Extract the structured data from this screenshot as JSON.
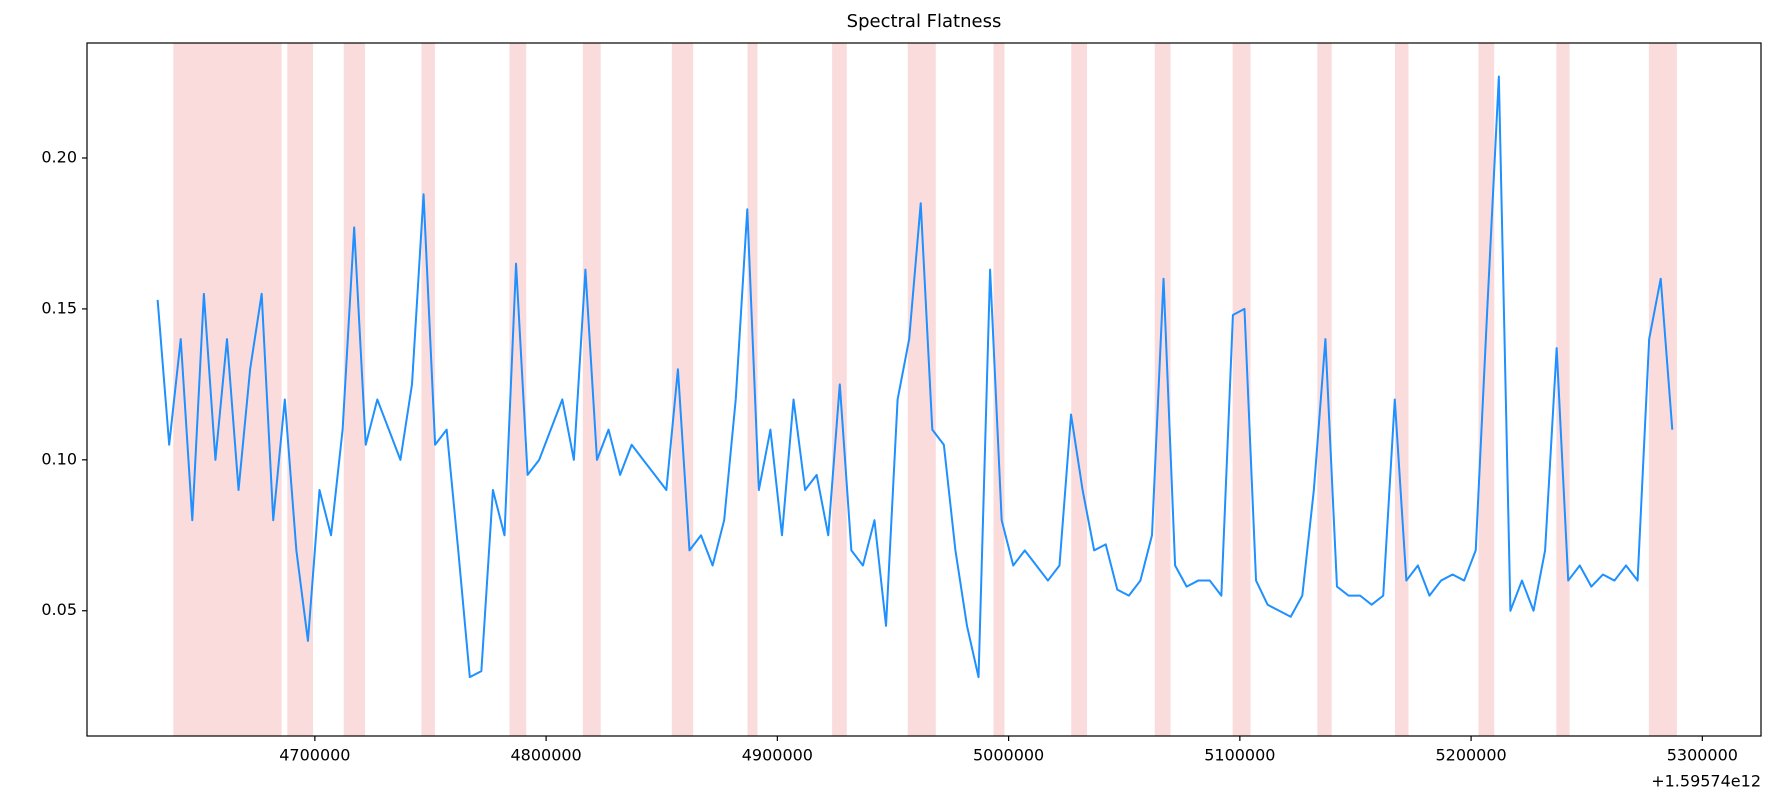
{
  "chart_data": {
    "type": "line",
    "title": "Spectral Flatness",
    "color": "#1e90ff",
    "span_color": "#fbdcdc",
    "x_offset_label": "+1.59574e12",
    "xlim": [
      4601463,
      5325366
    ],
    "ylim": [
      0.0085,
      0.2381
    ],
    "xticks": [
      4700000,
      4800000,
      4900000,
      5000000,
      5100000,
      5200000,
      5300000
    ],
    "yticks": [
      0.05,
      {
        "value": 0.1,
        "label": "0.10"
      },
      0.15,
      {
        "value": 0.2,
        "label": "0.20"
      }
    ],
    "spans": [
      [
        4639000,
        4685400
      ],
      [
        4688300,
        4699000
      ],
      [
        4712700,
        4721500
      ],
      [
        4746300,
        4751700
      ],
      [
        4784400,
        4791200
      ],
      [
        4816100,
        4823400
      ],
      [
        4854600,
        4863400
      ],
      [
        4887300,
        4891200
      ],
      [
        4923900,
        4929800
      ],
      [
        4956600,
        4968300
      ],
      [
        4993700,
        4998000
      ],
      [
        5027300,
        5033700
      ],
      [
        5063400,
        5069800
      ],
      [
        5097100,
        5104400
      ],
      [
        5133700,
        5139500
      ],
      [
        5167300,
        5172700
      ],
      [
        5203400,
        5209800
      ],
      [
        5237100,
        5242400
      ],
      [
        5277100,
        5288800
      ]
    ],
    "x": [
      4632000,
      4637000,
      4642000,
      4647000,
      4652000,
      4657000,
      4662000,
      4667000,
      4672000,
      4677000,
      4682000,
      4687000,
      4692000,
      4697000,
      4702000,
      4707000,
      4712000,
      4717000,
      4722000,
      4727000,
      4732000,
      4737000,
      4742000,
      4747000,
      4752000,
      4757000,
      4762000,
      4767000,
      4772000,
      4777000,
      4782000,
      4787000,
      4792000,
      4797000,
      4802000,
      4807000,
      4812000,
      4817000,
      4822000,
      4827000,
      4832000,
      4837000,
      4842000,
      4847000,
      4852000,
      4857000,
      4862000,
      4867000,
      4872000,
      4877000,
      4882000,
      4887000,
      4892000,
      4897000,
      4902000,
      4907000,
      4912000,
      4917000,
      4922000,
      4927000,
      4932000,
      4937000,
      4942000,
      4947000,
      4952000,
      4957000,
      4962000,
      4967000,
      4972000,
      4977000,
      4982000,
      4987000,
      4992000,
      4997000,
      5002000,
      5007000,
      5012000,
      5017000,
      5022000,
      5027000,
      5032000,
      5037000,
      5042000,
      5047000,
      5052000,
      5057000,
      5062000,
      5067000,
      5072000,
      5077000,
      5082000,
      5087000,
      5092000,
      5097000,
      5102000,
      5107000,
      5112000,
      5117000,
      5122000,
      5127000,
      5132000,
      5137000,
      5142000,
      5147000,
      5152000,
      5157000,
      5162000,
      5167000,
      5172000,
      5177000,
      5182000,
      5187000,
      5192000,
      5197000,
      5202000,
      5207000,
      5212000,
      5217000,
      5222000,
      5227000,
      5232000,
      5237000,
      5242000,
      5247000,
      5252000,
      5257000,
      5262000,
      5267000,
      5272000,
      5277000,
      5282000,
      5287000
    ],
    "values": [
      0.153,
      0.105,
      0.14,
      0.08,
      0.155,
      0.1,
      0.14,
      0.09,
      0.13,
      0.155,
      0.08,
      0.12,
      0.07,
      0.04,
      0.09,
      0.075,
      0.11,
      0.177,
      0.105,
      0.12,
      0.11,
      0.1,
      0.125,
      0.188,
      0.105,
      0.11,
      0.07,
      0.028,
      0.03,
      0.09,
      0.075,
      0.165,
      0.095,
      0.1,
      0.11,
      0.12,
      0.1,
      0.163,
      0.1,
      0.11,
      0.095,
      0.105,
      0.1,
      0.095,
      0.09,
      0.13,
      0.07,
      0.075,
      0.065,
      0.08,
      0.12,
      0.183,
      0.09,
      0.11,
      0.075,
      0.12,
      0.09,
      0.095,
      0.075,
      0.125,
      0.07,
      0.065,
      0.08,
      0.045,
      0.12,
      0.14,
      0.185,
      0.11,
      0.105,
      0.07,
      0.045,
      0.028,
      0.163,
      0.08,
      0.065,
      0.07,
      0.065,
      0.06,
      0.065,
      0.115,
      0.09,
      0.07,
      0.072,
      0.057,
      0.055,
      0.06,
      0.075,
      0.16,
      0.065,
      0.058,
      0.06,
      0.06,
      0.055,
      0.148,
      0.15,
      0.06,
      0.052,
      0.05,
      0.048,
      0.055,
      0.09,
      0.14,
      0.058,
      0.055,
      0.055,
      0.052,
      0.055,
      0.12,
      0.06,
      0.065,
      0.055,
      0.06,
      0.062,
      0.06,
      0.07,
      0.15,
      0.227,
      0.05,
      0.06,
      0.05,
      0.07,
      0.137,
      0.06,
      0.065,
      0.058,
      0.062,
      0.06,
      0.065,
      0.06,
      0.14,
      0.16,
      0.11
    ]
  }
}
